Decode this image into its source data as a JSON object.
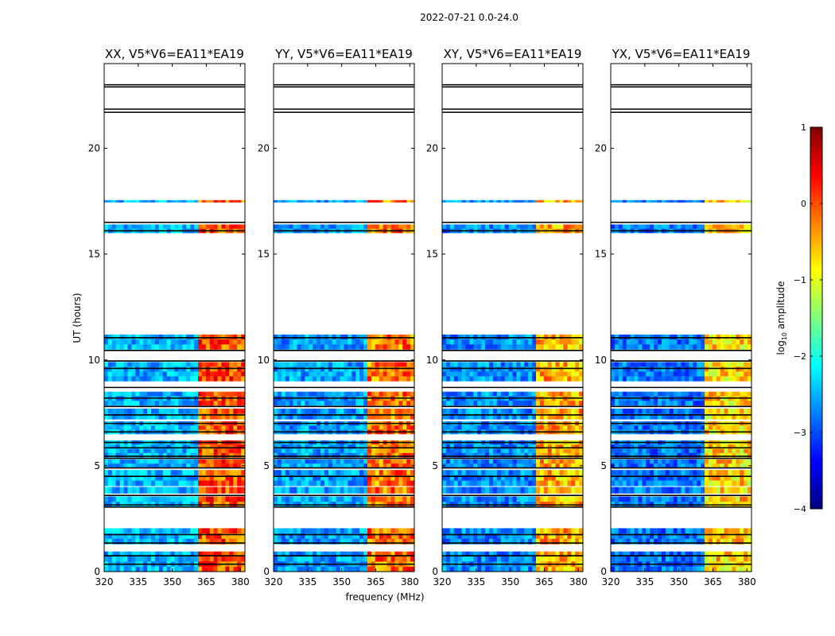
{
  "chart_data": {
    "type": "heatmap",
    "suptitle": "2022-07-21 0.0-24.0",
    "xlabel": "frequency (MHz)",
    "ylabel": "UT (hours)",
    "xlim": [
      320,
      382
    ],
    "ylim": [
      0,
      24
    ],
    "xticks": [
      320,
      335,
      350,
      365,
      380
    ],
    "yticks": [
      0,
      5,
      10,
      15,
      20
    ],
    "colormap": "jet",
    "colorbar": {
      "label": "log10 amplitude",
      "label_prefix": "log",
      "label_sub": "10",
      "label_suffix": " amplitude",
      "range": [
        -4,
        1
      ],
      "ticks": [
        1,
        0,
        -1,
        -2,
        -3,
        -4
      ],
      "tick_labels": [
        "1",
        "0",
        "−1",
        "−2",
        "−3",
        "−4"
      ]
    },
    "panels": [
      {
        "title": "XX, V5*V6=EA11*EA19",
        "low_band_log_amp": -2.5,
        "high_band_log_amp": 0.0
      },
      {
        "title": "YY, V5*V6=EA11*EA19",
        "low_band_log_amp": -2.6,
        "high_band_log_amp": -0.2
      },
      {
        "title": "XY, V5*V6=EA11*EA19",
        "low_band_log_amp": -2.7,
        "high_band_log_amp": -0.5
      },
      {
        "title": "YX, V5*V6=EA11*EA19",
        "low_band_log_amp": -2.8,
        "high_band_log_amp": -0.7
      }
    ],
    "band_split_mhz": 361,
    "data_segments_ut_hours": [
      [
        0.0,
        0.95
      ],
      [
        1.3,
        2.05
      ],
      [
        3.05,
        3.55
      ],
      [
        3.7,
        4.0
      ],
      [
        4.05,
        4.8
      ],
      [
        4.9,
        5.3
      ],
      [
        5.4,
        6.2
      ],
      [
        6.5,
        7.1
      ],
      [
        7.2,
        7.7
      ],
      [
        7.85,
        8.5
      ],
      [
        9.0,
        9.9
      ],
      [
        10.5,
        11.2
      ],
      [
        16.0,
        16.4
      ],
      [
        17.45,
        17.55
      ]
    ],
    "flag_lines_ut_hours": [
      0.35,
      0.75,
      1.35,
      1.75,
      3.05,
      3.15,
      3.6,
      4.5,
      4.9,
      5.35,
      5.45,
      5.85,
      6.1,
      6.6,
      7.0,
      7.4,
      7.8,
      8.2,
      8.7,
      9.6,
      9.95,
      10.45,
      11.05,
      16.1,
      16.5,
      21.7,
      21.85,
      22.9,
      23.0
    ]
  }
}
